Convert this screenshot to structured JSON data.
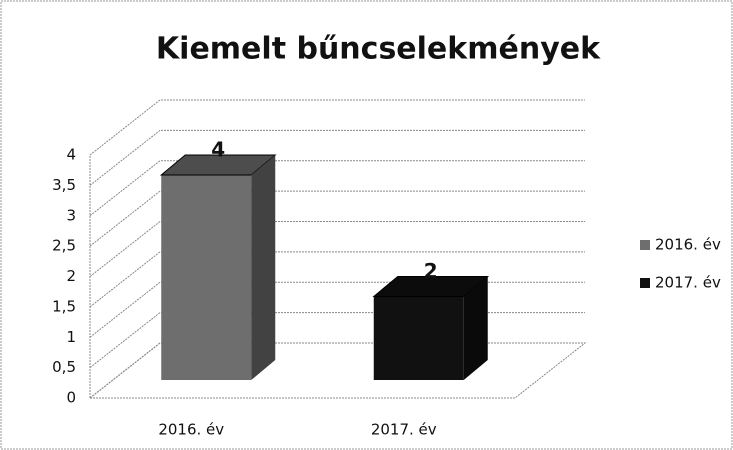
{
  "chart_data": {
    "type": "bar3d",
    "title": "Kiemelt bűncselekmények",
    "categories": [
      "2016. év",
      "2017. év"
    ],
    "values": [
      4,
      2
    ],
    "colors": [
      "#6e6e6e",
      "#111111"
    ],
    "ylim": [
      0,
      4
    ],
    "yticks": [
      0,
      {
        "value": 0.5,
        "label": "0,5"
      },
      1,
      {
        "value": 1.5,
        "label": "1,5"
      },
      2,
      {
        "value": 2.5,
        "label": "2,5"
      },
      3,
      {
        "value": 3.5,
        "label": "3,5"
      },
      4
    ],
    "grid": true,
    "legend": "right"
  }
}
